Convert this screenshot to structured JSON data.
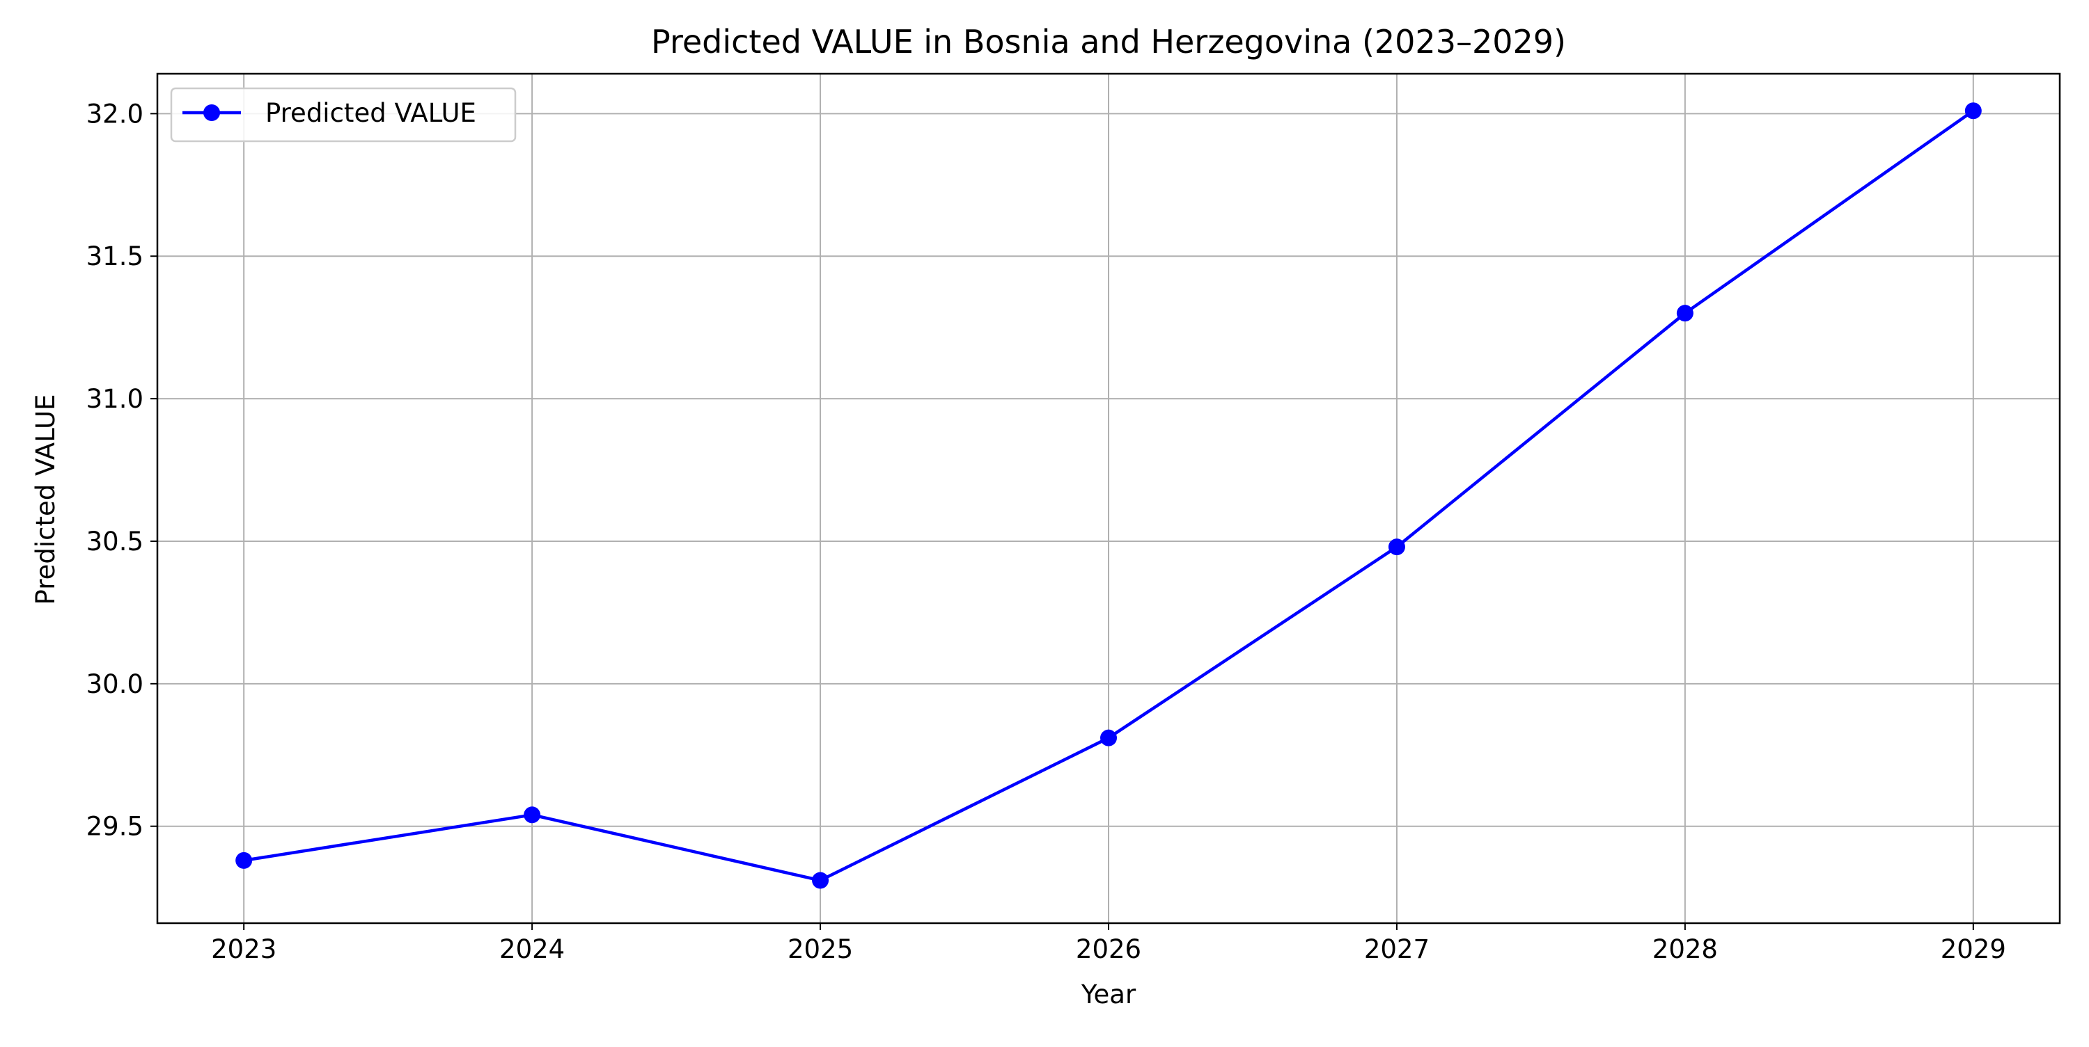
{
  "chart_data": {
    "type": "line",
    "title": "Predicted VALUE in Bosnia and Herzegovina (2023–2029)",
    "xlabel": "Year",
    "ylabel": "Predicted VALUE",
    "x": [
      2023,
      2024,
      2025,
      2026,
      2027,
      2028,
      2029
    ],
    "xticks": [
      "2023",
      "2024",
      "2025",
      "2026",
      "2027",
      "2028",
      "2029"
    ],
    "yticks": [
      "29.5",
      "30.0",
      "30.5",
      "31.0",
      "31.5",
      "32.0"
    ],
    "xlim": [
      2022.7,
      2029.3
    ],
    "ylim": [
      29.16,
      32.14
    ],
    "grid": true,
    "legend_position": "upper-left",
    "series": [
      {
        "name": "Predicted VALUE",
        "color": "#0000ff",
        "marker": "circle",
        "values": [
          29.38,
          29.54,
          29.31,
          29.81,
          30.48,
          31.3,
          32.01
        ]
      }
    ]
  }
}
